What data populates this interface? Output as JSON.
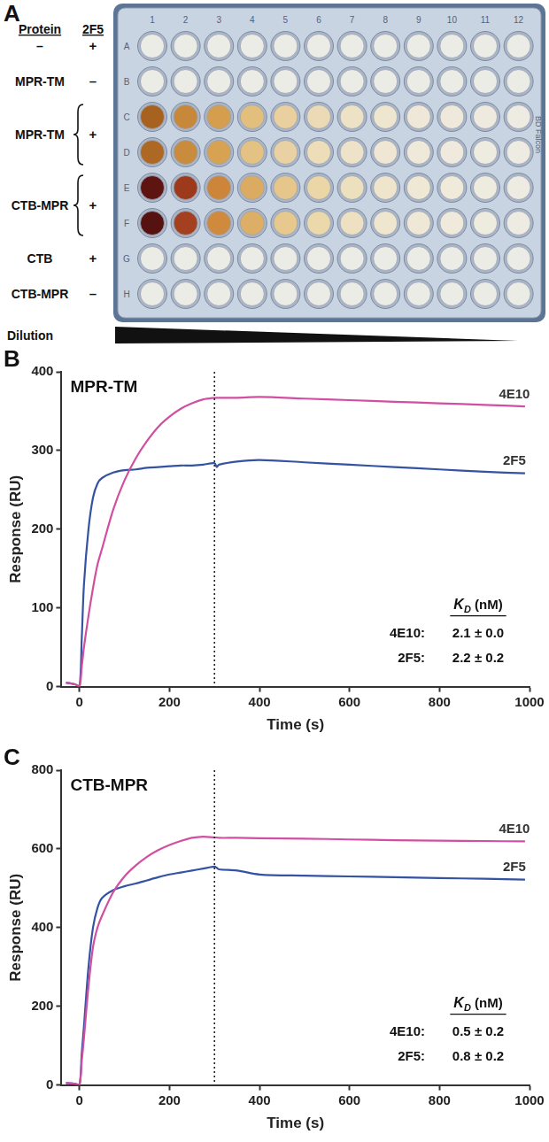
{
  "plate": {
    "panel": "A",
    "headers": [
      "Protein",
      "2F5"
    ],
    "groups": [
      {
        "protein": "–",
        "2F5": "+",
        "rows": [
          "A"
        ]
      },
      {
        "protein": "MPR-TM",
        "2F5": "–",
        "rows": [
          "B"
        ]
      },
      {
        "protein": "MPR-TM",
        "2F5": "+",
        "rows": [
          "C",
          "D"
        ]
      },
      {
        "protein": "CTB-MPR",
        "2F5": "+",
        "rows": [
          "E",
          "F"
        ]
      },
      {
        "protein": "CTB",
        "2F5": "+",
        "rows": [
          "G"
        ]
      },
      {
        "protein": "CTB-MPR",
        "2F5": "–",
        "rows": [
          "H"
        ]
      }
    ],
    "row_labels": [
      "A",
      "B",
      "C",
      "D",
      "E",
      "F",
      "G",
      "H"
    ],
    "column_labels": [
      1,
      2,
      3,
      4,
      5,
      6,
      7,
      8,
      9,
      10,
      11,
      12
    ],
    "brand": "BD Falcon",
    "dilution_label": "Dilution",
    "well_colors": {
      "A": [
        "#ecece6",
        "#ecece6",
        "#ecece6",
        "#ecece6",
        "#ecece6",
        "#ecece6",
        "#ecece6",
        "#ecece6",
        "#ecece6",
        "#ecece6",
        "#ecece6",
        "#ecece6"
      ],
      "B": [
        "#ecece6",
        "#ecece6",
        "#ecece6",
        "#ecece6",
        "#ecece6",
        "#ecece6",
        "#ecece6",
        "#ecece6",
        "#ecece6",
        "#ecece6",
        "#ecece6",
        "#ecece6"
      ],
      "C": [
        "#a8621f",
        "#c8883a",
        "#d59e4e",
        "#e3bf7e",
        "#eacf9f",
        "#ecdab6",
        "#eee2c6",
        "#efe6d0",
        "#efe8d8",
        "#efe9dc",
        "#efeadf",
        "#eeebe2"
      ],
      "D": [
        "#ad6824",
        "#c98b3c",
        "#d7a252",
        "#e4c283",
        "#ead1a3",
        "#edddb9",
        "#eee3c8",
        "#efe7d3",
        "#efe9da",
        "#efeadd",
        "#eeebe0",
        "#eeebe3"
      ],
      "E": [
        "#5e1410",
        "#9e3a1c",
        "#cd8639",
        "#dcab62",
        "#e6c68a",
        "#ebd6a8",
        "#ede0bf",
        "#eee5cc",
        "#efe8d5",
        "#efeada",
        "#eeebdf",
        "#eeebe3"
      ],
      "F": [
        "#561210",
        "#a4401f",
        "#cf8a3d",
        "#ddae66",
        "#e7c98e",
        "#ebd8ab",
        "#ede1c1",
        "#eee6ce",
        "#efe8d6",
        "#efeadb",
        "#eeebdf",
        "#eeebe3"
      ],
      "G": [
        "#ecece6",
        "#ecece6",
        "#ecece6",
        "#ecece6",
        "#ecece6",
        "#ecece6",
        "#ecece6",
        "#ecece6",
        "#ecece6",
        "#ecece6",
        "#ecece6",
        "#ecece6"
      ],
      "H": [
        "#ecece6",
        "#ecece6",
        "#ecece6",
        "#ecece6",
        "#ecece6",
        "#ecece6",
        "#ecece6",
        "#ecece6",
        "#ecece6",
        "#ecece6",
        "#ecece6",
        "#ecece6"
      ]
    }
  },
  "chart_data": [
    {
      "type": "line",
      "panel": "B",
      "title": "MPR-TM",
      "x_label": "Time (s)",
      "y_label": "Response (RU)",
      "x": [
        -30,
        -10,
        0,
        5,
        10,
        20,
        30,
        40,
        50,
        75,
        100,
        125,
        150,
        175,
        200,
        225,
        250,
        275,
        300,
        305,
        310,
        350,
        400,
        500,
        600,
        700,
        800,
        900,
        990
      ],
      "series": [
        {
          "name": "4E10",
          "color": "#d14fa0",
          "values": [
            5,
            3,
            0,
            25,
            50,
            90,
            125,
            155,
            175,
            225,
            262,
            290,
            312,
            330,
            343,
            353,
            360,
            365,
            367,
            367,
            367,
            367,
            368,
            366,
            364,
            362,
            360,
            358,
            356
          ]
        },
        {
          "name": "2F5",
          "color": "#3552a3",
          "values": [
            5,
            3,
            0,
            60,
            130,
            200,
            240,
            258,
            265,
            272,
            275,
            276,
            278,
            279,
            280,
            281,
            281,
            282,
            284,
            279,
            282,
            286,
            288,
            285,
            282,
            279,
            276,
            273,
            271
          ]
        }
      ],
      "xlim": [
        -40,
        1000
      ],
      "xticks": [
        0,
        200,
        400,
        600,
        800,
        1000
      ],
      "ylim": [
        0,
        400
      ],
      "yticks": [
        0,
        100,
        200,
        300,
        400
      ],
      "grid": false,
      "injection_end": 300,
      "kd_table": {
        "header": "KD (nM)",
        "rows": [
          {
            "name": "4E10:",
            "value": "2.1 ± 0.0"
          },
          {
            "name": "2F5:",
            "value": "2.2 ± 0.2"
          }
        ]
      }
    },
    {
      "type": "line",
      "panel": "C",
      "title": "CTB-MPR",
      "x_label": "Time (s)",
      "y_label": "Response (RU)",
      "x": [
        -30,
        -10,
        0,
        5,
        10,
        20,
        30,
        40,
        50,
        75,
        100,
        125,
        150,
        175,
        200,
        225,
        250,
        275,
        300,
        305,
        310,
        350,
        400,
        500,
        600,
        700,
        800,
        900,
        990
      ],
      "series": [
        {
          "name": "4E10",
          "color": "#d14fa0",
          "values": [
            5,
            3,
            0,
            60,
            120,
            250,
            350,
            400,
            430,
            490,
            530,
            558,
            580,
            597,
            610,
            620,
            628,
            631,
            629,
            629,
            628,
            628,
            627,
            626,
            624,
            622,
            621,
            620,
            619
          ]
        },
        {
          "name": "2F5",
          "color": "#3552a3",
          "values": [
            5,
            3,
            0,
            80,
            150,
            300,
            400,
            450,
            475,
            495,
            505,
            512,
            520,
            528,
            535,
            540,
            545,
            550,
            555,
            552,
            548,
            545,
            535,
            532,
            530,
            528,
            526,
            524,
            522
          ]
        }
      ],
      "xlim": [
        -40,
        1000
      ],
      "xticks": [
        0,
        200,
        400,
        600,
        800,
        1000
      ],
      "ylim": [
        0,
        800
      ],
      "yticks": [
        0,
        200,
        400,
        600,
        800
      ],
      "grid": false,
      "injection_end": 300,
      "kd_table": {
        "header": "KD (nM)",
        "rows": [
          {
            "name": "4E10:",
            "value": "0.5 ± 0.2"
          },
          {
            "name": "2F5:",
            "value": "0.8 ± 0.2"
          }
        ]
      }
    }
  ]
}
